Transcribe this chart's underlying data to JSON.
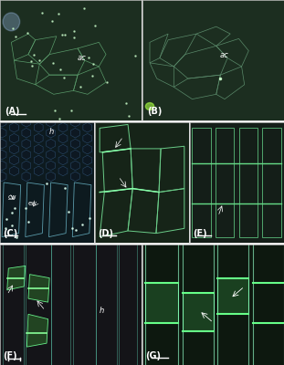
{
  "layout": {
    "panels": [
      {
        "label": "A",
        "row": 0,
        "col": 0,
        "colspan": 1,
        "rowspan": 1
      },
      {
        "label": "B",
        "row": 0,
        "col": 1,
        "colspan": 1,
        "rowspan": 1
      },
      {
        "label": "C",
        "row": 1,
        "col": 0,
        "colspan": 1,
        "rowspan": 1
      },
      {
        "label": "D",
        "row": 1,
        "col": 1,
        "colspan": 1,
        "rowspan": 1
      },
      {
        "label": "E",
        "row": 1,
        "col": 2,
        "colspan": 1,
        "rowspan": 1
      },
      {
        "label": "F",
        "row": 2,
        "col": 0,
        "colspan": 1,
        "rowspan": 1
      },
      {
        "label": "G",
        "row": 2,
        "col": 1,
        "colspan": 2,
        "rowspan": 1
      }
    ]
  },
  "panel_colors": {
    "A": {
      "bg": "#1a2e1e",
      "cell_lines": "#4a8a5a",
      "bright_dots": true,
      "label": "ac"
    },
    "B": {
      "bg": "#1a2e1e",
      "cell_lines": "#4a7a5a",
      "bright_dots": false,
      "label": "ac"
    },
    "C": {
      "bg": "#0d1a1f",
      "cell_lines": "#3a6a7a",
      "label_h": "h",
      "label_cw": "cw",
      "label_ew": "ew"
    },
    "D": {
      "bg": "#1a2a1e",
      "cell_lines": "#5a9a6a",
      "has_arrows": true
    },
    "E": {
      "bg": "#1a2a1e",
      "cell_lines": "#4a8a6a",
      "has_arrows": true
    },
    "F": {
      "bg": "#1a1a1e",
      "cell_lines": "#5aaa7a",
      "label_h": "h",
      "has_arrows": true
    },
    "G": {
      "bg": "#0d1a10",
      "cell_lines": "#4aaa6a",
      "has_arrows": true
    }
  },
  "border_color": "#cccccc",
  "label_color": "#ffffff",
  "label_fontsize": 7,
  "annotation_fontsize": 6,
  "figure_bg": "#ffffff"
}
